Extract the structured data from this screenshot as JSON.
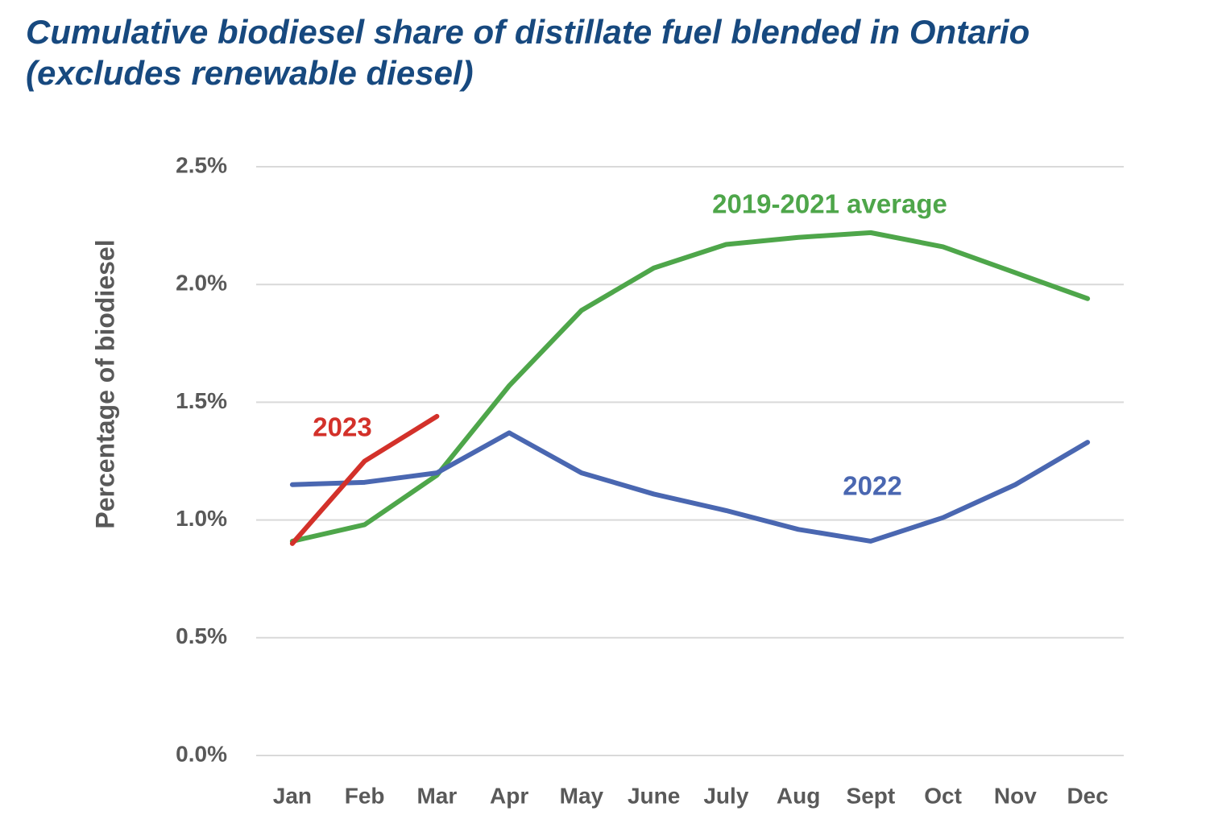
{
  "chart_data": {
    "type": "line",
    "title": "Cumulative biodiesel share of distillate fuel blended in Ontario (excludes renewable diesel)",
    "y_label": "Percentage of biodiesel",
    "categories": [
      "Jan",
      "Feb",
      "Mar",
      "Apr",
      "May",
      "June",
      "July",
      "Aug",
      "Sept",
      "Oct",
      "Nov",
      "Dec"
    ],
    "series": [
      {
        "name": "2019-2021 average",
        "color": "#4ea64a",
        "values": [
          0.91,
          0.98,
          1.19,
          1.57,
          1.89,
          2.07,
          2.17,
          2.2,
          2.22,
          2.16,
          2.05,
          1.94
        ]
      },
      {
        "name": "2022",
        "color": "#4a67b1",
        "values": [
          1.15,
          1.16,
          1.2,
          1.37,
          1.2,
          1.11,
          1.04,
          0.96,
          0.91,
          1.01,
          1.15,
          1.33
        ]
      },
      {
        "name": "2023",
        "color": "#d3312a",
        "values": [
          0.9,
          1.25,
          1.44,
          null,
          null,
          null,
          null,
          null,
          null,
          null,
          null,
          null
        ]
      }
    ],
    "ylim": [
      0,
      2.5
    ],
    "yticks": [
      {
        "value": 0,
        "label": "0.0%"
      },
      {
        "value": 0.5,
        "label": "0.5%"
      },
      {
        "value": 1,
        "label": "1.0%"
      },
      {
        "value": 1.5,
        "label": "1.5%"
      },
      {
        "value": 2,
        "label": "2.0%"
      },
      {
        "value": 2.5,
        "label": "2.5%"
      }
    ],
    "grid": true
  }
}
